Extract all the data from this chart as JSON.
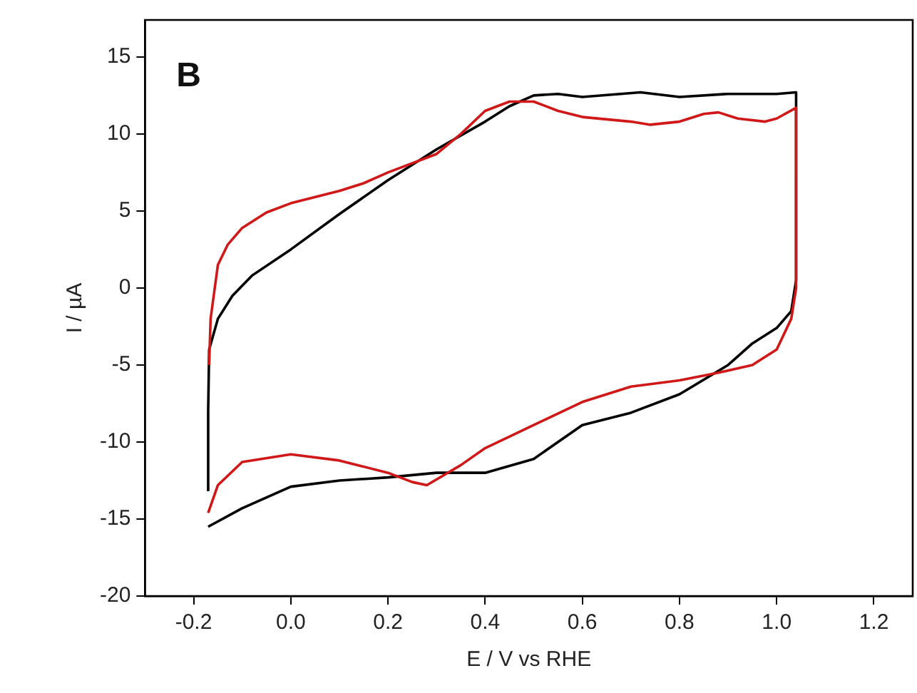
{
  "chart_data": {
    "type": "line",
    "xlabel": "E / V vs RHE",
    "ylabel": "I / µA",
    "annotations": [
      "B"
    ],
    "xlim": [
      -0.3,
      1.28
    ],
    "xticks": [
      -0.2,
      {
        "value": 0,
        "label": "0.0"
      },
      0.2,
      0.4,
      0.6,
      0.8,
      {
        "value": 1,
        "label": "1.0"
      },
      1.2
    ],
    "ylim": [
      -20,
      17.4
    ],
    "yticks": [
      -20,
      -15,
      -10,
      -5,
      0,
      5,
      10,
      15
    ],
    "grid": false,
    "legend": false,
    "marker": "none",
    "line_style": "solid",
    "series": [
      {
        "color": "#d01818",
        "x": [
          -0.168,
          -0.165,
          -0.15,
          -0.13,
          -0.1,
          -0.05,
          0,
          0.1,
          0.15,
          0.2,
          0.3,
          0.35,
          0.4,
          0.45,
          0.5,
          0.55,
          0.6,
          0.7,
          0.74,
          0.8,
          0.85,
          0.88,
          0.92,
          0.976,
          1.0,
          1.04,
          1.04,
          1.03,
          1.0,
          0.95,
          0.88,
          0.8,
          0.7,
          0.6,
          0.5,
          0.4,
          0.35,
          0.28,
          0.25,
          0.2,
          0.1,
          0,
          -0.1,
          -0.15,
          -0.17
        ],
        "values": [
          -5,
          -2,
          1.5,
          2.8,
          3.9,
          4.9,
          5.5,
          6.3,
          6.8,
          7.5,
          8.7,
          10,
          11.5,
          12.1,
          12.1,
          11.5,
          11.1,
          10.8,
          10.6,
          10.8,
          11.3,
          11.4,
          11.0,
          10.8,
          11.0,
          11.7,
          0,
          -2,
          -4,
          -5,
          -5.5,
          -6,
          -6.4,
          -7.4,
          -8.9,
          -10.4,
          -11.5,
          -12.8,
          -12.6,
          -12,
          -11.2,
          -10.8,
          -11.3,
          -12.8,
          -14.6
        ]
      },
      {
        "color": "#000000",
        "x": [
          -0.17,
          -0.17,
          -0.168,
          -0.15,
          -0.12,
          -0.08,
          0,
          0.1,
          0.2,
          0.3,
          0.4,
          0.45,
          0.5,
          0.55,
          0.6,
          0.72,
          0.8,
          0.9,
          1.0,
          1.04,
          1.04,
          1.03,
          1.0,
          0.95,
          0.9,
          0.8,
          0.7,
          0.6,
          0.5,
          0.4,
          0.3,
          0.2,
          0.1,
          0,
          -0.1,
          -0.17
        ],
        "values": [
          -13.2,
          -8,
          -4,
          -2,
          -0.5,
          0.8,
          2.5,
          4.8,
          7,
          9,
          10.8,
          11.8,
          12.5,
          12.6,
          12.4,
          12.7,
          12.4,
          12.6,
          12.6,
          12.7,
          0.5,
          -1.5,
          -2.6,
          -3.6,
          -5,
          -6.9,
          -8.1,
          -8.9,
          -11.1,
          -12,
          -12,
          -12.3,
          -12.5,
          -12.9,
          -14.3,
          -15.5
        ]
      }
    ]
  }
}
